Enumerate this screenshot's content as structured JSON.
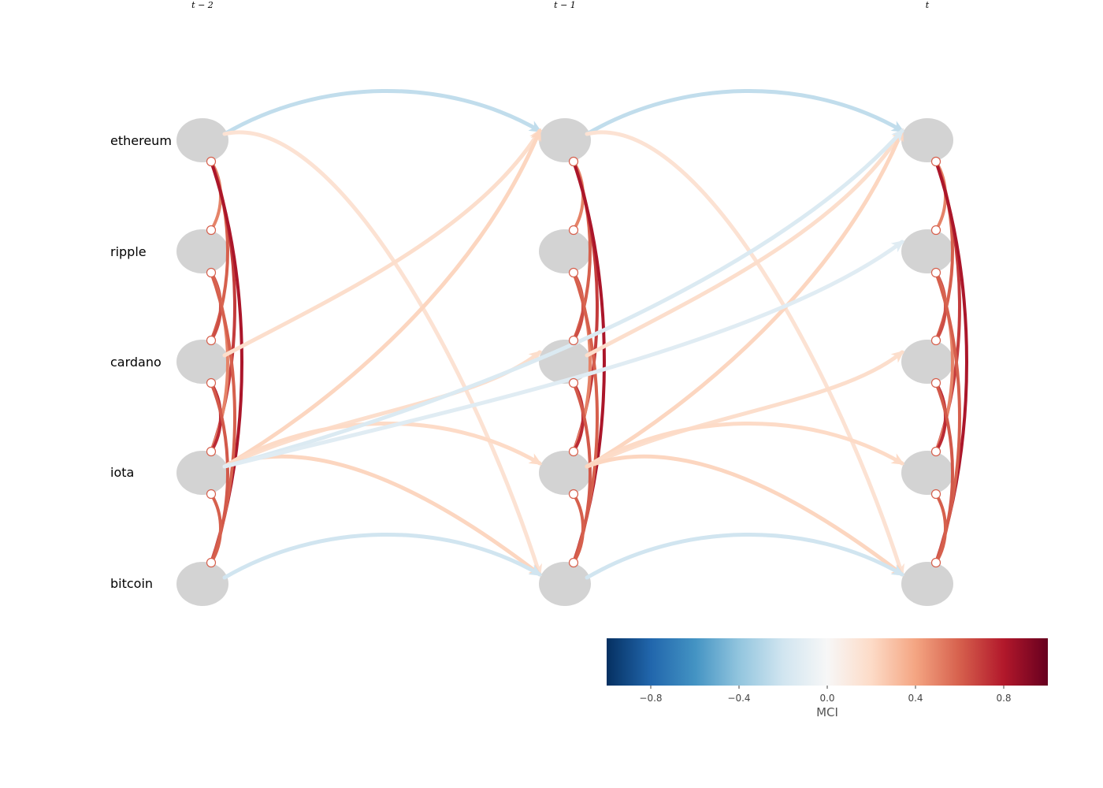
{
  "title": "",
  "time_labels": [
    "t − 2",
    "t − 1",
    "t"
  ],
  "variables": [
    "ethereum",
    "ripple",
    "cardano",
    "iota",
    "bitcoin"
  ],
  "colorbar": {
    "label": "MCI",
    "vmin": -1,
    "vmax": 1,
    "ticks": [
      {
        "value": -0.8,
        "label": "−0.8"
      },
      {
        "value": -0.4,
        "label": "−0.4"
      },
      {
        "value": 0.0,
        "label": "0.0"
      },
      {
        "value": 0.4,
        "label": "0.4"
      },
      {
        "value": 0.8,
        "label": "0.8"
      }
    ],
    "colors": [
      "#053061",
      "#2166ac",
      "#4393c3",
      "#92c5de",
      "#d1e5f0",
      "#f7f7f7",
      "#fddbc7",
      "#f4a582",
      "#d6604d",
      "#b2182b",
      "#67001f"
    ]
  },
  "node_color": "#d3d3d3",
  "lagged_links": [
    {
      "source": "ethereum",
      "target": "ethereum",
      "lag": 1,
      "value": -0.25
    },
    {
      "source": "ethereum",
      "target": "bitcoin",
      "lag": 1,
      "value": 0.15
    },
    {
      "source": "cardano",
      "target": "ethereum",
      "lag": 1,
      "value": 0.18
    },
    {
      "source": "iota",
      "target": "ethereum",
      "lag": 1,
      "value": 0.22
    },
    {
      "source": "iota",
      "target": "cardano",
      "lag": 1,
      "value": 0.18
    },
    {
      "source": "iota",
      "target": "iota",
      "lag": 1,
      "value": 0.2
    },
    {
      "source": "iota",
      "target": "bitcoin",
      "lag": 1,
      "value": 0.22
    },
    {
      "source": "bitcoin",
      "target": "bitcoin",
      "lag": 1,
      "value": -0.2
    },
    {
      "source": "iota",
      "target": "ethereum",
      "lag": 2,
      "value": -0.15
    },
    {
      "source": "iota",
      "target": "ripple",
      "lag": 2,
      "value": -0.12
    }
  ],
  "contemporaneous_links": [
    {
      "a": "ethereum",
      "b": "ripple",
      "value": 0.5
    },
    {
      "a": "ethereum",
      "b": "cardano",
      "value": 0.6
    },
    {
      "a": "ethereum",
      "b": "iota",
      "value": 0.7
    },
    {
      "a": "ethereum",
      "b": "bitcoin",
      "value": 0.82
    },
    {
      "a": "ripple",
      "b": "cardano",
      "value": 0.65
    },
    {
      "a": "ripple",
      "b": "iota",
      "value": 0.5
    },
    {
      "a": "ripple",
      "b": "bitcoin",
      "value": 0.6
    },
    {
      "a": "cardano",
      "b": "iota",
      "value": 0.75
    },
    {
      "a": "cardano",
      "b": "bitcoin",
      "value": 0.62
    },
    {
      "a": "iota",
      "b": "bitcoin",
      "value": 0.6
    }
  ]
}
